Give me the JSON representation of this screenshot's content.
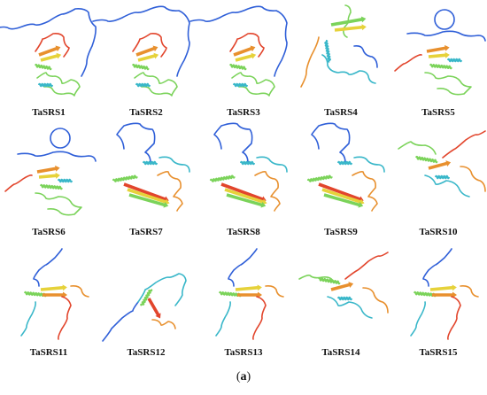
{
  "figure": {
    "panels": [
      {
        "label": "TaSRS1",
        "variant": "tail-left"
      },
      {
        "label": "TaSRS2",
        "variant": "tail-left"
      },
      {
        "label": "TaSRS3",
        "variant": "tail-left"
      },
      {
        "label": "TaSRS4",
        "variant": "compact-helix"
      },
      {
        "label": "TaSRS5",
        "variant": "loop-top"
      },
      {
        "label": "TaSRS6",
        "variant": "loop-top"
      },
      {
        "label": "TaSRS7",
        "variant": "sheet-bottom"
      },
      {
        "label": "TaSRS8",
        "variant": "sheet-bottom"
      },
      {
        "label": "TaSRS9",
        "variant": "sheet-bottom"
      },
      {
        "label": "TaSRS10",
        "variant": "spread"
      },
      {
        "label": "TaSRS11",
        "variant": "tails-down"
      },
      {
        "label": "TaSRS12",
        "variant": "wide-loop"
      },
      {
        "label": "TaSRS13",
        "variant": "tails-down"
      },
      {
        "label": "TaSRS14",
        "variant": "spread"
      },
      {
        "label": "TaSRS15",
        "variant": "tails-down"
      }
    ],
    "caption_letter": "a",
    "palette": {
      "blue": "#2f5fd8",
      "cyan": "#39b7c9",
      "green": "#7bd35a",
      "yellow": "#e6d23a",
      "orange": "#e8902e",
      "red": "#e2452c"
    }
  }
}
